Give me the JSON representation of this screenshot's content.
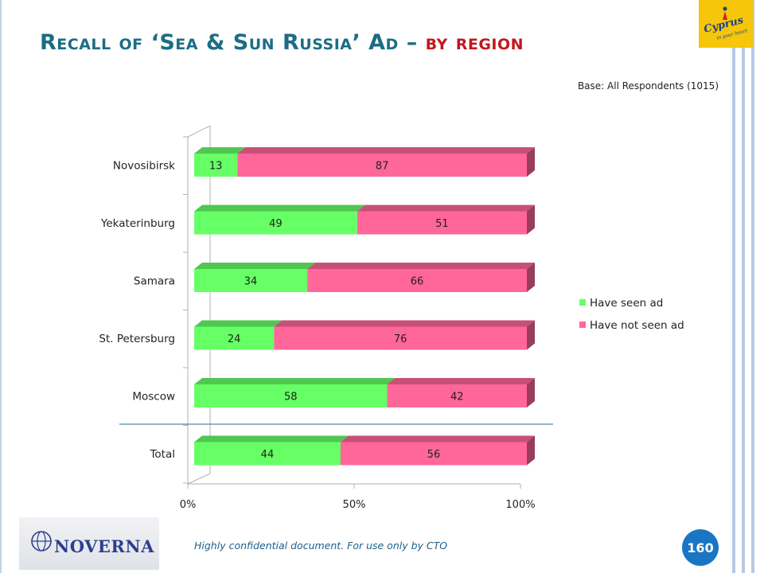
{
  "slide": {
    "title": "Recall of ‘Sea & Sun Russia’ Ad –",
    "title_suffix": "by region",
    "base_note": "Base: All Respondents (1015)",
    "footer_note": "Highly confidential document. For use only by CTO",
    "page_number": "160",
    "logos": {
      "noverna_text": "NOVERNA",
      "cyprus_text": "Cyprus",
      "cyprus_tagline": "in your heart"
    },
    "colors": {
      "title": "#1b6d85",
      "title_suffix": "#c0181e",
      "badge": "#1a76c4"
    }
  },
  "chart_data": {
    "type": "bar",
    "orientation": "horizontal",
    "stacked": true,
    "percent_stacked": true,
    "categories": [
      "Novosibirsk",
      "Yekaterinburg",
      "Samara",
      "St. Petersburg",
      "Moscow",
      "Total"
    ],
    "series": [
      {
        "name": "Have seen ad",
        "color": "#66ff66",
        "values": [
          13,
          49,
          34,
          24,
          58,
          44
        ]
      },
      {
        "name": "Have not seen ad",
        "color": "#ff6699",
        "values": [
          87,
          51,
          66,
          76,
          42,
          56
        ]
      }
    ],
    "x_ticks": [
      "0%",
      "50%",
      "100%"
    ],
    "xlim": [
      0,
      100
    ],
    "legend_position": "right",
    "grid": false
  }
}
